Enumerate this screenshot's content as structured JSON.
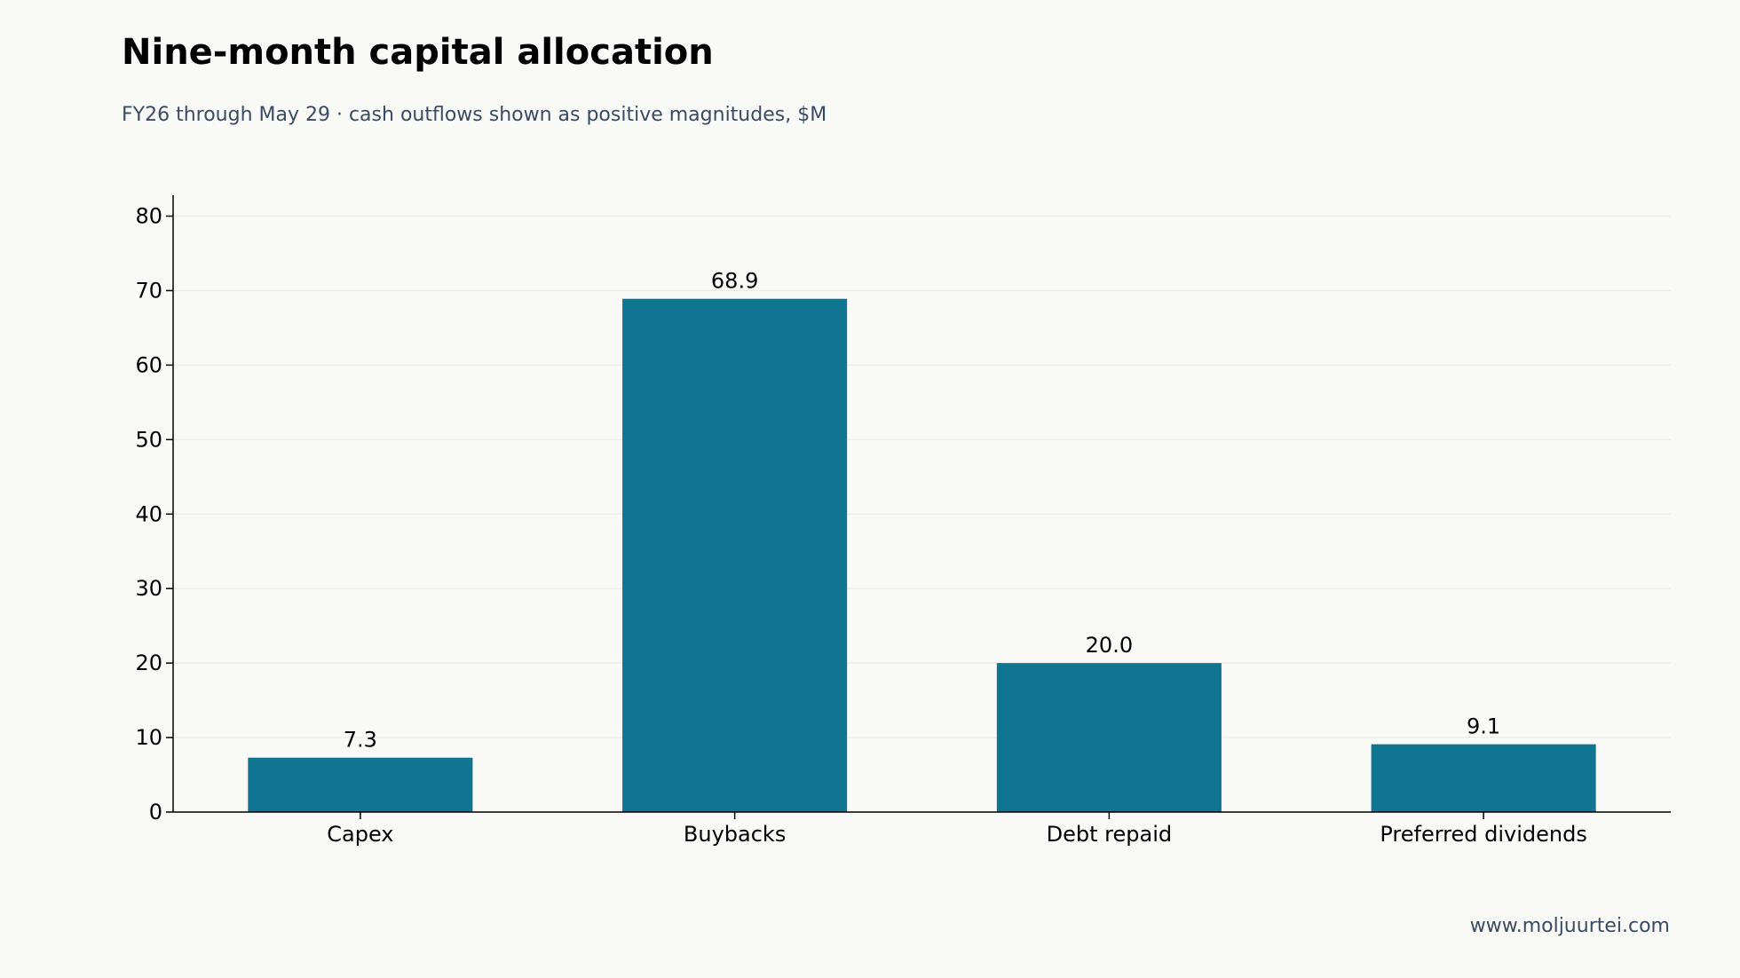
{
  "header": {
    "title": "Nine-month capital allocation",
    "subtitle": "FY26 through May 29 · cash outflows shown as positive magnitudes, $M"
  },
  "footer": {
    "source": "www.moljuurtei.com"
  },
  "colors": {
    "bar": "#107591",
    "axis": "#000000",
    "grid": "#ececec"
  },
  "chart_data": {
    "type": "bar",
    "categories": [
      "Capex",
      "Buybacks",
      "Debt repaid",
      "Preferred dividends"
    ],
    "values": [
      7.3,
      68.9,
      20.0,
      9.1
    ],
    "value_labels": [
      "7.3",
      "68.9",
      "20.0",
      "9.1"
    ],
    "title": "Nine-month capital allocation",
    "subtitle": "FY26 through May 29 · cash outflows shown as positive magnitudes, $M",
    "xlabel": "",
    "ylabel": "",
    "ylim": [
      0,
      82.8
    ],
    "yticks": [
      0,
      10,
      20,
      30,
      40,
      50,
      60,
      70,
      80
    ],
    "grid": true,
    "legend": "none"
  }
}
